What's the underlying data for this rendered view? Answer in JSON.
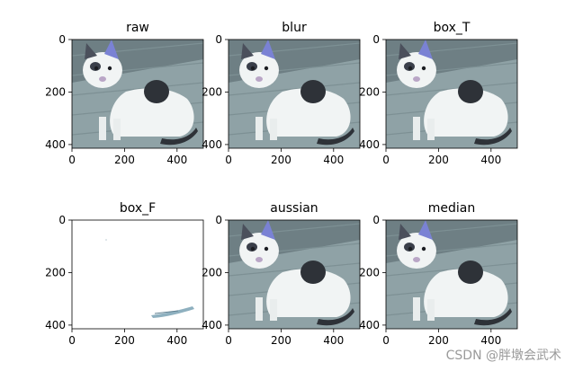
{
  "chart_data": [
    {
      "type": "image",
      "title": "raw",
      "variant": "photo",
      "xlim": [
        0,
        500
      ],
      "ylim": [
        414,
        0
      ],
      "xticks": [
        0,
        200,
        400
      ],
      "yticks": [
        0,
        200,
        400
      ]
    },
    {
      "type": "image",
      "title": "blur",
      "variant": "photo",
      "xlim": [
        0,
        500
      ],
      "ylim": [
        414,
        0
      ],
      "xticks": [
        0,
        200,
        400
      ],
      "yticks": [
        0,
        200,
        400
      ]
    },
    {
      "type": "image",
      "title": "box_T",
      "variant": "photo",
      "xlim": [
        0,
        500
      ],
      "ylim": [
        414,
        0
      ],
      "xticks": [
        0,
        200,
        400
      ],
      "yticks": [
        0,
        200,
        400
      ]
    },
    {
      "type": "image",
      "title": "box_F",
      "variant": "saturated",
      "xlim": [
        0,
        500
      ],
      "ylim": [
        414,
        0
      ],
      "xticks": [
        0,
        200,
        400
      ],
      "yticks": [
        0,
        200,
        400
      ]
    },
    {
      "type": "image",
      "title": "aussian",
      "variant": "photo",
      "xlim": [
        0,
        500
      ],
      "ylim": [
        414,
        0
      ],
      "xticks": [
        0,
        200,
        400
      ],
      "yticks": [
        0,
        200,
        400
      ]
    },
    {
      "type": "image",
      "title": "median",
      "variant": "photo",
      "xlim": [
        0,
        500
      ],
      "ylim": [
        414,
        0
      ],
      "xticks": [
        0,
        200,
        400
      ],
      "yticks": [
        0,
        200,
        400
      ]
    }
  ],
  "watermark": "CSDN @胖墩会武术",
  "colors": {
    "pavement": "#8fa2a6",
    "cat_white": "#f1f4f4",
    "patch": "#2e3238",
    "ear_tint": "#7a82d4"
  }
}
